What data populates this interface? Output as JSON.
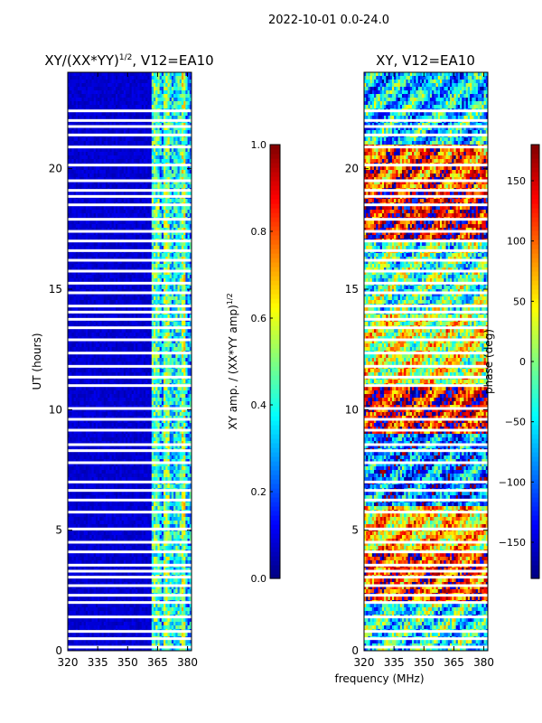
{
  "figure_title": "2022-10-01 0.0-24.0",
  "x_axis_label": "frequency (MHz)",
  "chart_data": [
    {
      "type": "heatmap",
      "title_main": "XY/(XX*YY)",
      "title_sup": "1/2",
      "title_rest": ", V12=EA10",
      "xlabel": "",
      "ylabel": "UT (hours)",
      "xlim": [
        320,
        382
      ],
      "ylim": [
        0,
        24
      ],
      "xticks": [
        "320",
        "335",
        "350",
        "365",
        "380"
      ],
      "xtick_values": [
        320,
        335,
        350,
        365,
        380
      ],
      "yticks": [
        "0",
        "5",
        "10",
        "15",
        "20"
      ],
      "ytick_values": [
        0,
        5,
        10,
        15,
        20
      ],
      "colorbar": {
        "label_main": "XY amp. / (XX*YY amp)",
        "label_sup": "1/2",
        "range": [
          0.0,
          1.0
        ],
        "ticks": [
          "0.0",
          "0.2",
          "0.4",
          "0.6",
          "0.8",
          "1.0"
        ],
        "tick_values": [
          0.0,
          0.2,
          0.4,
          0.6,
          0.8,
          1.0
        ],
        "colormap": "jet"
      },
      "blanked_hours": [
        0.15,
        0.5,
        0.8,
        1.4,
        2.0,
        2.3,
        2.7,
        3.05,
        3.3,
        3.55,
        4.1,
        4.5,
        5.05,
        5.75,
        6.25,
        6.65,
        7.0,
        7.8,
        8.3,
        8.55,
        9.15,
        9.6,
        10.05,
        11.0,
        11.35,
        11.8,
        12.35,
        12.9,
        13.4,
        13.75,
        14.05,
        14.3,
        14.85,
        15.25,
        15.75,
        16.2,
        16.6,
        17.0,
        17.4,
        17.9,
        18.5,
        18.85,
        19.1,
        19.5,
        20.15,
        20.9,
        21.4,
        21.75,
        22.0,
        22.4
      ],
      "value_regions": [
        {
          "freq_range": [
            320,
            362
          ],
          "typical": 0.08
        },
        {
          "freq_range": [
            362,
            366
          ],
          "typical": 0.45
        },
        {
          "freq_range": [
            366,
            368
          ],
          "typical": 0.3
        },
        {
          "freq_range": [
            368,
            371
          ],
          "typical": 0.5
        },
        {
          "freq_range": [
            371,
            374
          ],
          "typical": 0.35
        },
        {
          "freq_range": [
            374,
            377
          ],
          "typical": 0.4
        },
        {
          "freq_range": [
            377,
            379
          ],
          "typical": 0.55
        },
        {
          "freq_range": [
            379,
            382
          ],
          "typical": 0.3
        }
      ]
    },
    {
      "type": "heatmap",
      "title": "XY, V12=EA10",
      "xlabel": "frequency (MHz)",
      "ylabel": "",
      "xlim": [
        320,
        382
      ],
      "ylim": [
        0,
        24
      ],
      "xticks": [
        "320",
        "335",
        "350",
        "365",
        "380"
      ],
      "xtick_values": [
        320,
        335,
        350,
        365,
        380
      ],
      "yticks": [
        "0",
        "5",
        "10",
        "15",
        "20"
      ],
      "ytick_values": [
        0,
        5,
        10,
        15,
        20
      ],
      "colorbar": {
        "label": "phase (deg)",
        "range": [
          -180,
          180
        ],
        "ticks": [
          "−150",
          "−100",
          "−50",
          "0",
          "50",
          "100",
          "150"
        ],
        "tick_values": [
          -150,
          -100,
          -50,
          0,
          50,
          100,
          150
        ],
        "colormap": "jet"
      },
      "blanked_hours": [
        0.15,
        0.5,
        0.8,
        1.4,
        2.0,
        2.3,
        2.7,
        3.05,
        3.3,
        3.55,
        4.1,
        4.5,
        5.05,
        5.75,
        6.25,
        6.65,
        7.0,
        7.8,
        8.3,
        8.55,
        9.15,
        9.6,
        10.05,
        11.0,
        11.35,
        11.8,
        12.35,
        12.9,
        13.4,
        13.75,
        14.05,
        14.3,
        14.85,
        15.25,
        15.75,
        16.2,
        16.6,
        17.0,
        17.4,
        17.9,
        18.5,
        18.85,
        19.1,
        19.5,
        20.15,
        20.9,
        21.4,
        21.75,
        22.0,
        22.4
      ],
      "phase_bands_deg": [
        {
          "hours": [
            0,
            2
          ],
          "typical": -40
        },
        {
          "hours": [
            2,
            4
          ],
          "typical": 120
        },
        {
          "hours": [
            4,
            6
          ],
          "typical": 60
        },
        {
          "hours": [
            6,
            9
          ],
          "typical": -90
        },
        {
          "hours": [
            9,
            11
          ],
          "typical": 140
        },
        {
          "hours": [
            11,
            14
          ],
          "typical": 30
        },
        {
          "hours": [
            14,
            17
          ],
          "typical": -20
        },
        {
          "hours": [
            17,
            19
          ],
          "typical": 150
        },
        {
          "hours": [
            19,
            21
          ],
          "typical": 110
        },
        {
          "hours": [
            21,
            24
          ],
          "typical": -60
        }
      ]
    }
  ]
}
